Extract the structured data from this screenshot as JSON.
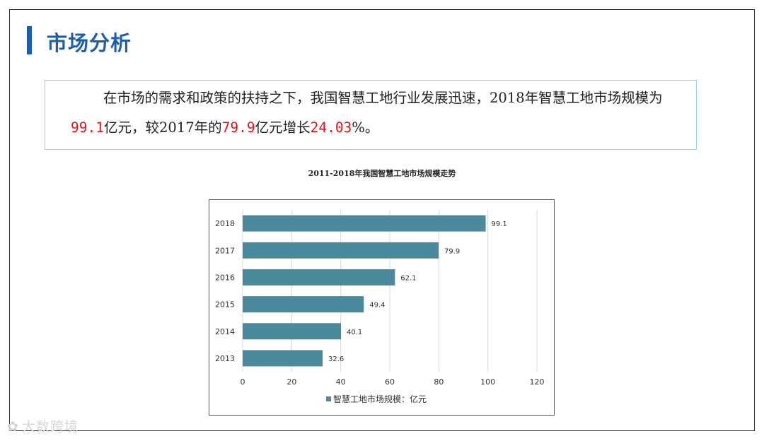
{
  "slide": {
    "title": "市场分析",
    "accent_color": "#1f5faa",
    "summary": {
      "part1": "在市场的需求和政策的扶持之下，我国智慧工地行业发展迅速，2018年智慧工地市场规模为",
      "value1": "99.1",
      "part2": "亿元，较2017年的",
      "value2": "79.9",
      "part3": "亿元增长",
      "value3": "24.03",
      "part4": "%。"
    }
  },
  "chart_data": {
    "type": "bar",
    "orientation": "horizontal",
    "title": "2011-2018年我国智慧工地市场规模走势",
    "categories": [
      "2018",
      "2017",
      "2016",
      "2015",
      "2014",
      "2013"
    ],
    "series": [
      {
        "name": "智慧工地市场规模：亿元",
        "values": [
          99.1,
          79.9,
          62.1,
          49.4,
          40.1,
          32.6
        ],
        "color": "#4a8a9c"
      }
    ],
    "xlim": [
      0,
      120
    ],
    "xticks": [
      0,
      20,
      40,
      60,
      80,
      100,
      120
    ],
    "grid": true,
    "legend_position": "bottom"
  },
  "watermark": {
    "icon": "wechat-logo-icon",
    "text": "大数跨境"
  }
}
